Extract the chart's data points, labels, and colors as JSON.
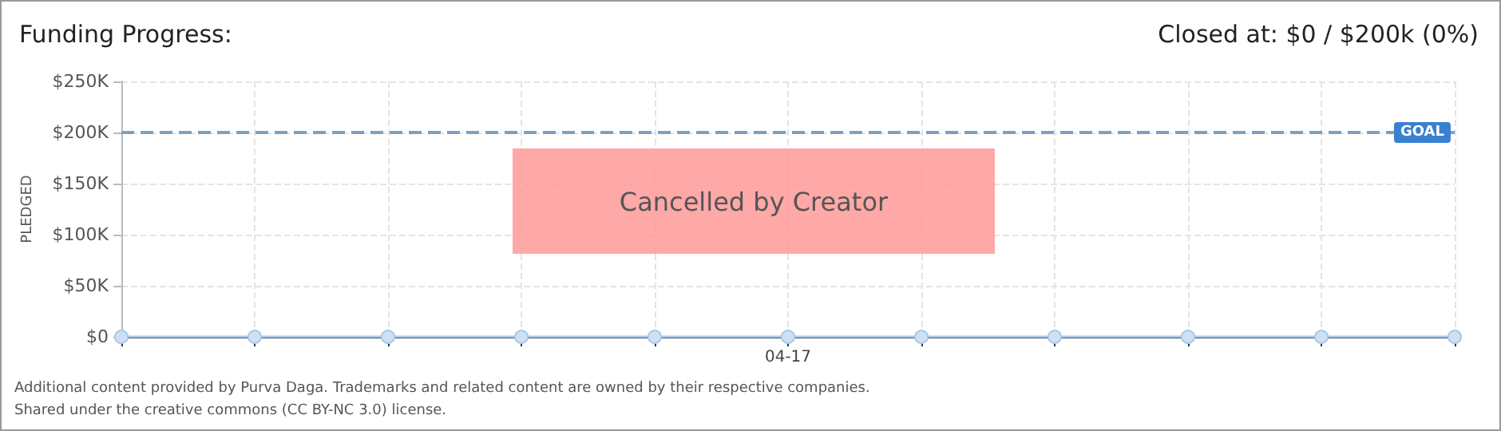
{
  "chart_data": {
    "type": "line",
    "title": "Funding Progress:",
    "subtitle": "Closed at: $0 / $200k (0%)",
    "ylabel": "PLEDGED",
    "categories": [
      null,
      null,
      null,
      null,
      null,
      "04-17",
      null,
      null,
      null,
      null,
      null
    ],
    "series": [
      {
        "color": "#a8c8ec",
        "values": [
          0,
          0,
          0,
          0,
          0,
          0,
          0,
          0,
          0,
          0,
          0
        ]
      }
    ],
    "ylim": [
      0,
      250000
    ],
    "yticks": [
      {
        "value": 0,
        "label": "$0"
      },
      {
        "value": 50000,
        "label": "$50K"
      },
      {
        "value": 100000,
        "label": "$100K"
      },
      {
        "value": 150000,
        "label": "$150K"
      },
      {
        "value": 200000,
        "label": "$200K"
      },
      {
        "value": 250000,
        "label": "$250K"
      }
    ],
    "ref_lines": [
      {
        "axis": "y",
        "value": 200000,
        "label": "GOAL",
        "color": "#7f9fbf",
        "line_style": "dashed"
      }
    ],
    "annotations": [
      "Cancelled by Creator",
      "Additional content provided by Purva Daga. Trademarks and related content are owned by their respective companies.",
      "Shared under the creative commons (CC BY-NC 3.0) license."
    ],
    "grid": true,
    "marker": "circle"
  }
}
